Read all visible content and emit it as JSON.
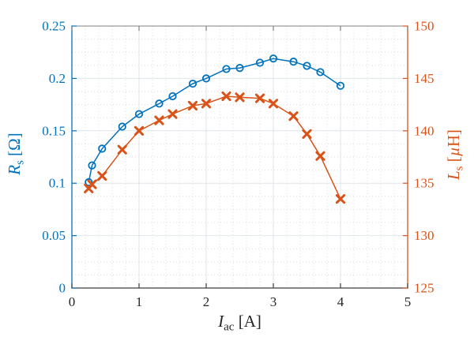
{
  "chart_data": {
    "type": "line",
    "title": "",
    "x": [
      0.25,
      0.3,
      0.45,
      0.75,
      1.0,
      1.3,
      1.5,
      1.8,
      2.0,
      2.3,
      2.5,
      2.8,
      3.0,
      3.3,
      3.5,
      3.7,
      4.0
    ],
    "series": [
      {
        "name": "R_s",
        "axis": "left",
        "marker": "circle",
        "color": "#0072BD",
        "values": [
          0.101,
          0.117,
          0.133,
          0.154,
          0.166,
          0.176,
          0.183,
          0.195,
          0.2,
          0.209,
          0.21,
          0.215,
          0.219,
          0.216,
          0.212,
          0.206,
          0.193
        ]
      },
      {
        "name": "L_s",
        "axis": "right",
        "marker": "x",
        "color": "#D95319",
        "values": [
          134.5,
          134.9,
          135.7,
          138.2,
          140.0,
          141.0,
          141.6,
          142.4,
          142.6,
          143.3,
          143.2,
          143.1,
          142.6,
          141.4,
          139.7,
          137.6,
          133.5
        ]
      }
    ],
    "x_axis": {
      "label_text": "I_ac [A]",
      "label_segments": [
        {
          "t": "I",
          "s": "it"
        },
        {
          "t": "ac",
          "s": "sub"
        },
        {
          "t": " [A]",
          "s": ""
        }
      ],
      "lim": [
        0,
        5
      ],
      "tick_values": [
        0,
        1,
        2,
        3,
        4,
        5
      ],
      "tick_labels": [
        "0",
        "1",
        "2",
        "3",
        "4",
        "5"
      ],
      "minor_step": 0.2,
      "color": "#262626"
    },
    "left_axis": {
      "label_text": "R_s [Ω]",
      "label_segments": [
        {
          "t": "R",
          "s": "it"
        },
        {
          "t": "s",
          "s": "sub"
        },
        {
          "t": " [Ω]",
          "s": ""
        }
      ],
      "lim": [
        0,
        0.25
      ],
      "tick_values": [
        0,
        0.05,
        0.1,
        0.15,
        0.2,
        0.25
      ],
      "tick_labels": [
        "0",
        "0.05",
        "0.1",
        "0.15",
        "0.2",
        "0.25"
      ],
      "minor_step": 0.0125,
      "color": "#0072BD"
    },
    "right_axis": {
      "label_text": "L_s [µH]",
      "label_segments": [
        {
          "t": "L",
          "s": "it"
        },
        {
          "t": "s",
          "s": "sub"
        },
        {
          "t": " [",
          "s": ""
        },
        {
          "t": "µ",
          "s": "it"
        },
        {
          "t": "H]",
          "s": ""
        }
      ],
      "lim": [
        125,
        150
      ],
      "tick_values": [
        125,
        130,
        135,
        140,
        145,
        150
      ],
      "tick_labels": [
        "125",
        "130",
        "135",
        "140",
        "145",
        "150"
      ],
      "minor_step": 1.25,
      "color": "#D95319"
    },
    "grid": {
      "major": true,
      "minor": true,
      "major_color": "#dfe4ea",
      "minor_color": "#d9dee4"
    },
    "frame": {
      "top_color": "#808080",
      "bottom_color": "#3d3d3d"
    },
    "background": "#ffffff"
  }
}
